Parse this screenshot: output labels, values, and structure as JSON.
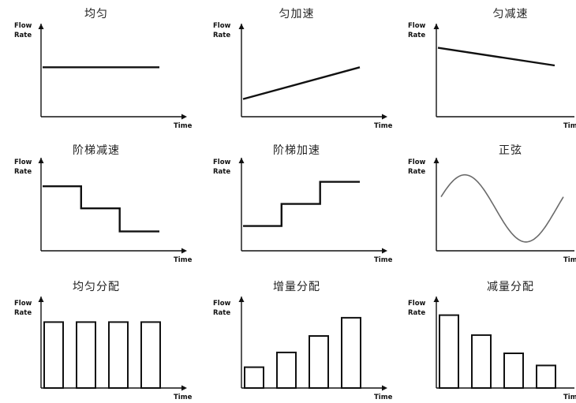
{
  "axis_labels": {
    "y_top": "Flow",
    "y_bottom": "Rate",
    "x": "Time"
  },
  "colors": {
    "line": "#111111",
    "sine": "#6a6a6a"
  },
  "chart_data": [
    {
      "type": "line",
      "title": "均匀",
      "xlabel": "Time",
      "ylabel": "Flow Rate",
      "x": [
        0,
        1
      ],
      "y": [
        0.56,
        0.56
      ],
      "ylim": [
        0,
        1
      ]
    },
    {
      "type": "line",
      "title": "匀加速",
      "xlabel": "Time",
      "ylabel": "Flow Rate",
      "x": [
        0,
        1
      ],
      "y": [
        0.2,
        0.56
      ],
      "ylim": [
        0,
        1
      ]
    },
    {
      "type": "line",
      "title": "匀减速",
      "xlabel": "Time",
      "ylabel": "Flow Rate",
      "x": [
        0,
        1
      ],
      "y": [
        0.78,
        0.58
      ],
      "ylim": [
        0,
        1
      ]
    },
    {
      "type": "line",
      "title": "阶梯减速",
      "xlabel": "Time",
      "ylabel": "Flow Rate",
      "x": [
        0,
        0.33,
        0.33,
        0.66,
        0.66,
        1
      ],
      "y": [
        0.73,
        0.73,
        0.48,
        0.48,
        0.22,
        0.22
      ],
      "ylim": [
        0,
        1
      ]
    },
    {
      "type": "line",
      "title": "阶梯加速",
      "xlabel": "Time",
      "ylabel": "Flow Rate",
      "x": [
        0,
        0.33,
        0.33,
        0.66,
        0.66,
        1
      ],
      "y": [
        0.28,
        0.28,
        0.53,
        0.53,
        0.78,
        0.78
      ],
      "ylim": [
        0,
        1
      ]
    },
    {
      "type": "line",
      "title": "正弦",
      "xlabel": "Time",
      "ylabel": "Flow Rate",
      "function": "sine",
      "baseline": 0.48,
      "amplitude": 0.38,
      "periods": 1,
      "ylim": [
        0,
        1
      ]
    },
    {
      "type": "bar",
      "title": "均匀分配",
      "xlabel": "Time",
      "ylabel": "Flow Rate",
      "values": [
        0.76,
        0.76,
        0.76,
        0.76
      ],
      "ylim": [
        0,
        1
      ]
    },
    {
      "type": "bar",
      "title": "增量分配",
      "xlabel": "Time",
      "ylabel": "Flow Rate",
      "values": [
        0.24,
        0.41,
        0.6,
        0.81
      ],
      "ylim": [
        0,
        1
      ]
    },
    {
      "type": "bar",
      "title": "减量分配",
      "xlabel": "Time",
      "ylabel": "Flow Rate",
      "values": [
        0.84,
        0.61,
        0.4,
        0.26
      ],
      "ylim": [
        0,
        1
      ]
    }
  ]
}
